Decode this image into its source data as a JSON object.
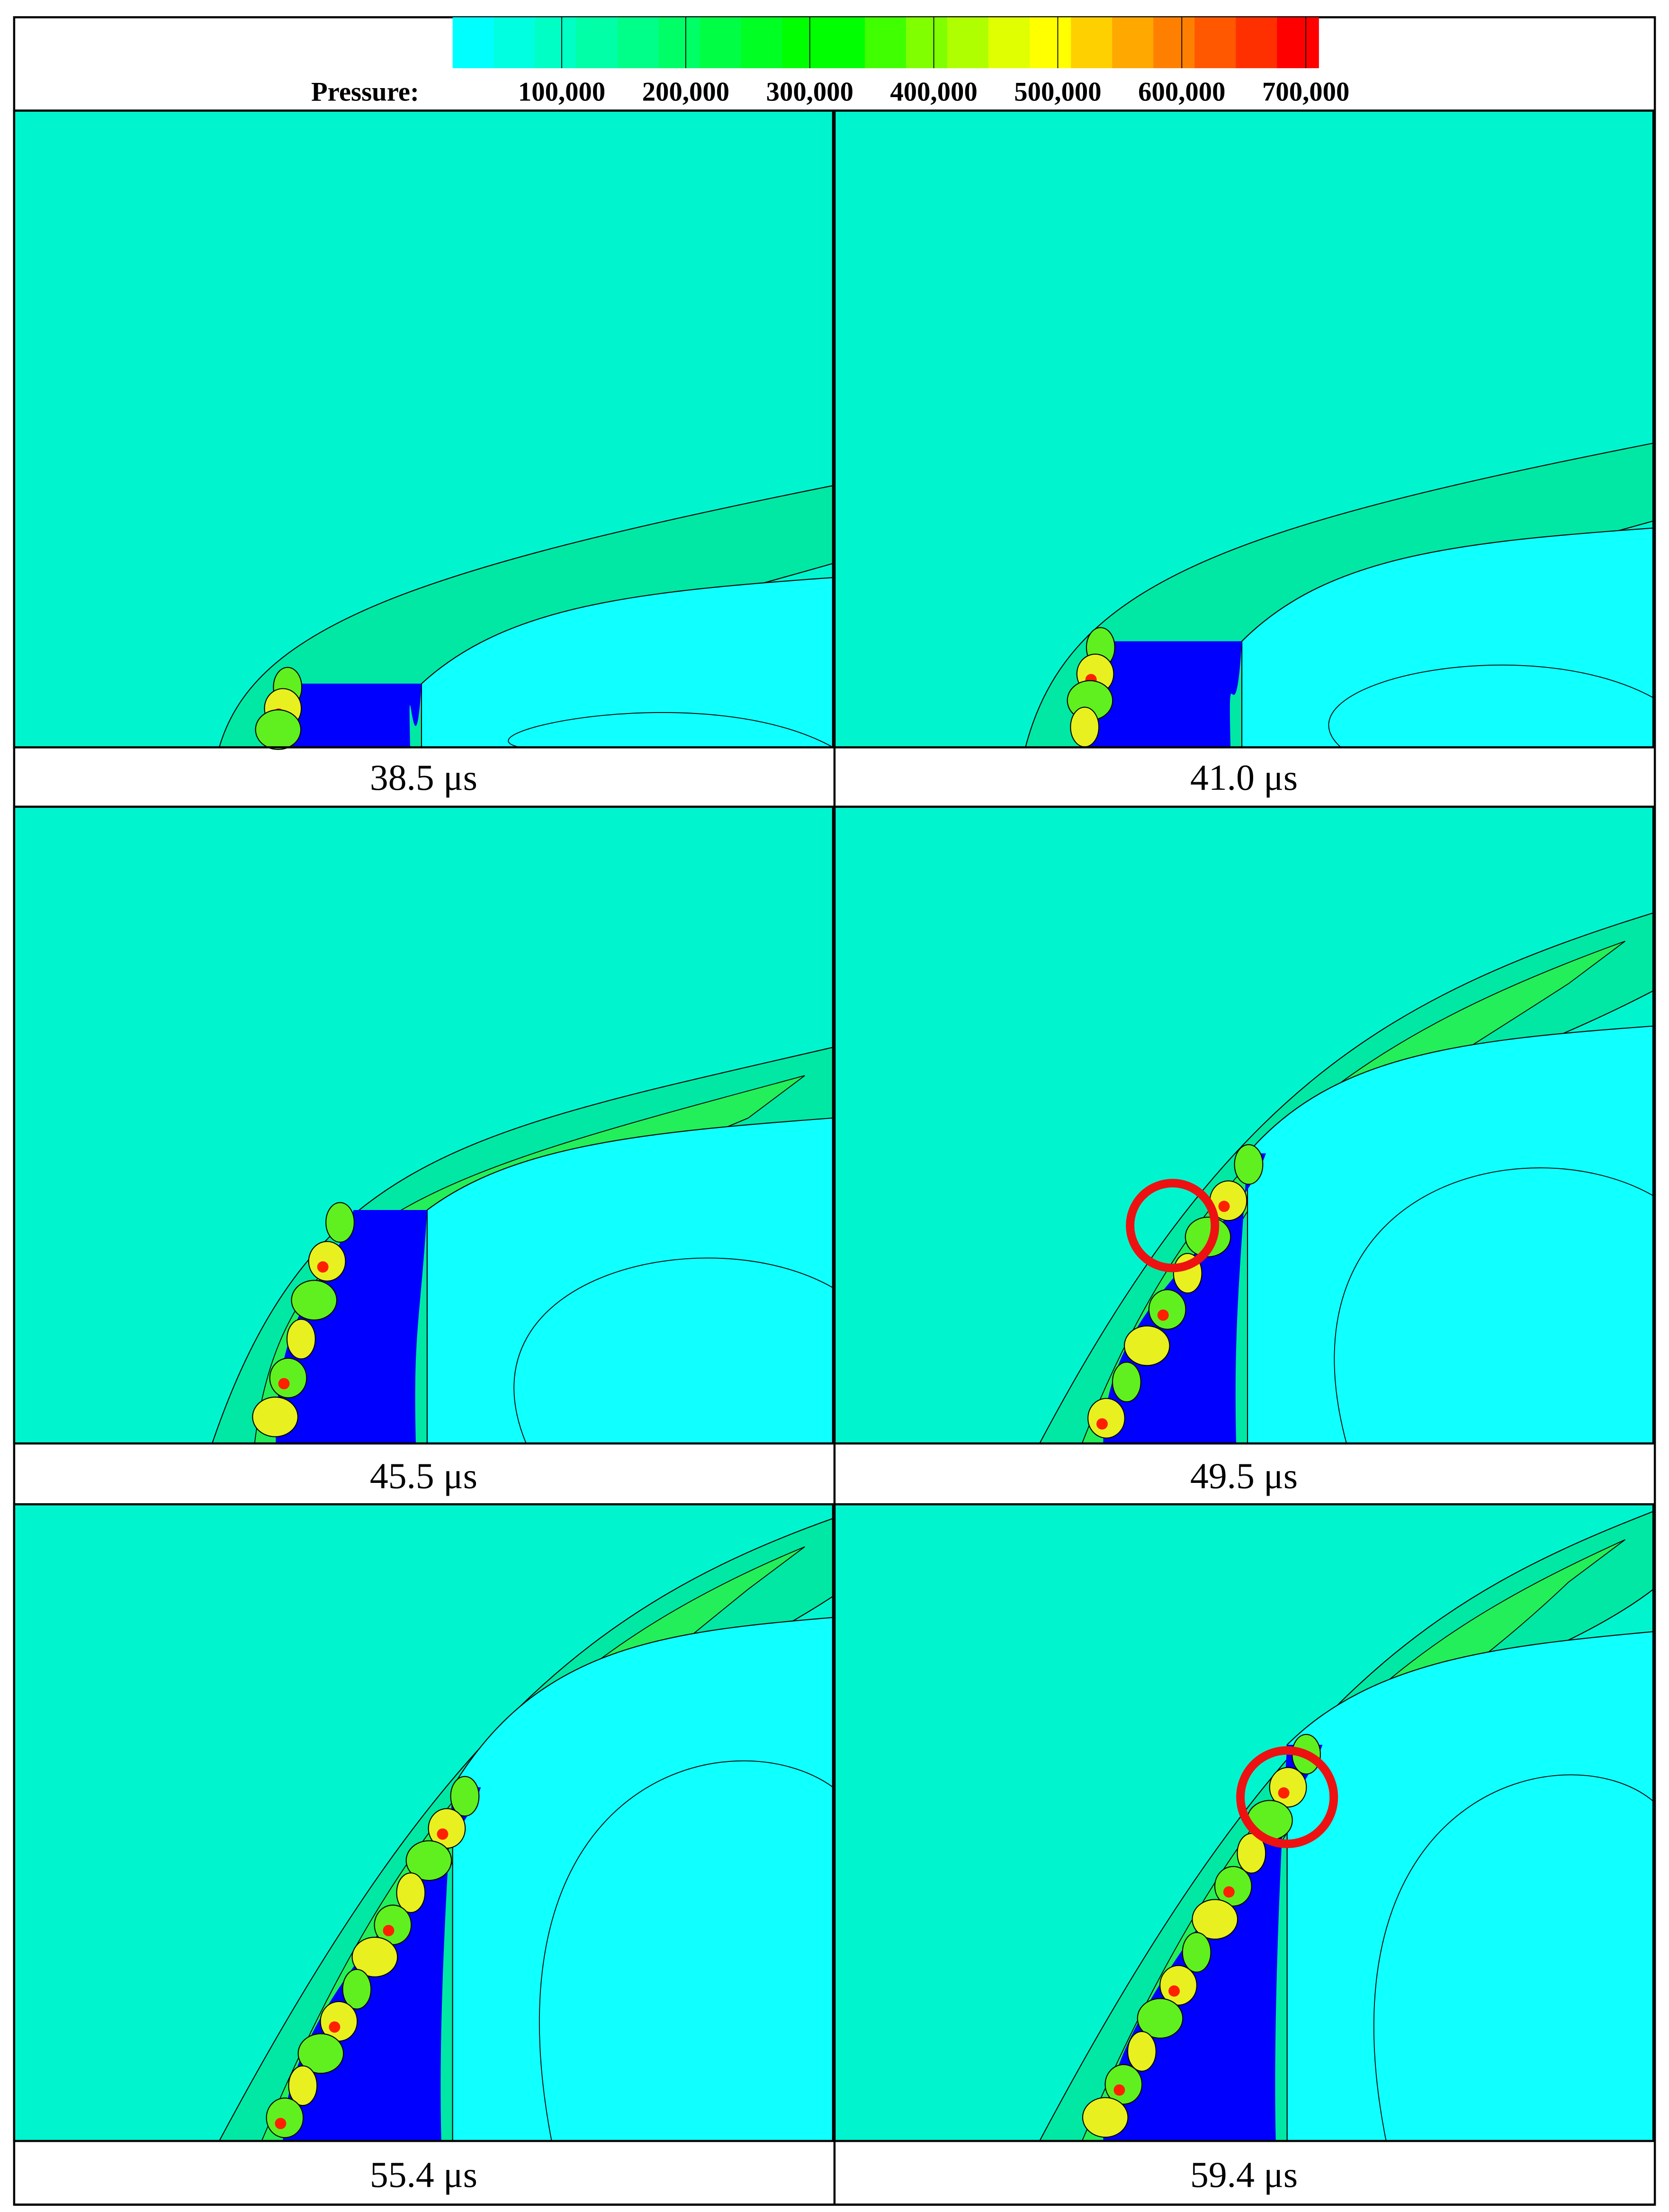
{
  "legend": {
    "label": "Pressure:",
    "ticks": [
      {
        "value": 100000,
        "label": "100,000"
      },
      {
        "value": 200000,
        "label": "200,000"
      },
      {
        "value": 300000,
        "label": "300,000"
      },
      {
        "value": 400000,
        "label": "400,000"
      },
      {
        "value": 500000,
        "label": "500,000"
      },
      {
        "value": 600000,
        "label": "600,000"
      },
      {
        "value": 700000,
        "label": "700,000"
      }
    ],
    "range": [
      12000,
      710000
    ],
    "colors": [
      "#00ffff",
      "#00ffe0",
      "#00ffc4",
      "#00ffa6",
      "#00ff88",
      "#00ff66",
      "#00ff44",
      "#00ff22",
      "#00ff00",
      "#00ff00",
      "#40ff00",
      "#80ff00",
      "#b0ff00",
      "#e0ff00",
      "#ffff00",
      "#ffd000",
      "#ffa800",
      "#ff8000",
      "#ff5800",
      "#ff3000",
      "#ff0000"
    ]
  },
  "panels": [
    {
      "caption": "38.5 μs"
    },
    {
      "caption": "41.0 μs"
    },
    {
      "caption": "45.5 μs"
    },
    {
      "caption": "49.5 μs"
    },
    {
      "caption": "55.4 μs"
    },
    {
      "caption": "59.4 μs"
    }
  ]
}
